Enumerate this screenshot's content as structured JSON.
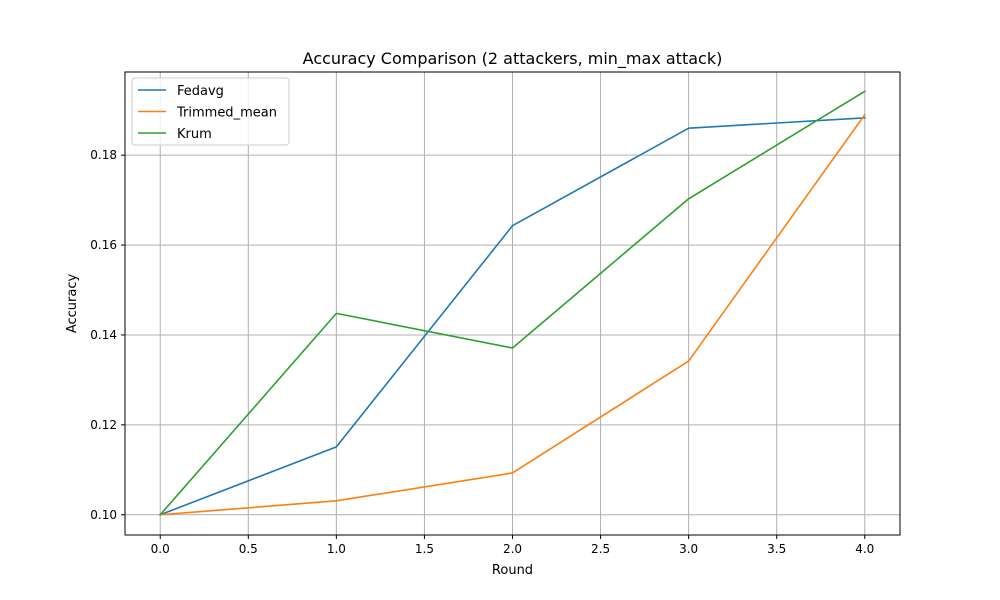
{
  "chart_data": {
    "type": "line",
    "title": "Accuracy Comparison (2 attackers, min_max attack)",
    "xlabel": "Round",
    "ylabel": "Accuracy",
    "x": [
      0,
      1,
      2,
      3,
      4
    ],
    "xlim": [
      -0.2,
      4.2
    ],
    "ylim": [
      0.0955,
      0.1985
    ],
    "xticks": [
      0.0,
      0.5,
      1.0,
      1.5,
      2.0,
      2.5,
      3.0,
      3.5,
      4.0
    ],
    "xtick_labels": [
      "0.0",
      "0.5",
      "1.0",
      "1.5",
      "2.0",
      "2.5",
      "3.0",
      "3.5",
      "4.0"
    ],
    "yticks": [
      0.1,
      0.12,
      0.14,
      0.16,
      0.18
    ],
    "ytick_labels": [
      "0.10",
      "0.12",
      "0.14",
      "0.16",
      "0.18"
    ],
    "grid": true,
    "legend_position": "top-left",
    "series": [
      {
        "name": "Fedavg",
        "color": "#1f77b4",
        "values": [
          0.1,
          0.1151,
          0.1643,
          0.186,
          0.1883
        ]
      },
      {
        "name": "Trimmed_mean",
        "color": "#ff7f0e",
        "values": [
          0.1,
          0.1031,
          0.1093,
          0.1342,
          0.189
        ]
      },
      {
        "name": "Krum",
        "color": "#2ca02c",
        "values": [
          0.1,
          0.1448,
          0.1371,
          0.1703,
          0.1942
        ]
      }
    ]
  }
}
